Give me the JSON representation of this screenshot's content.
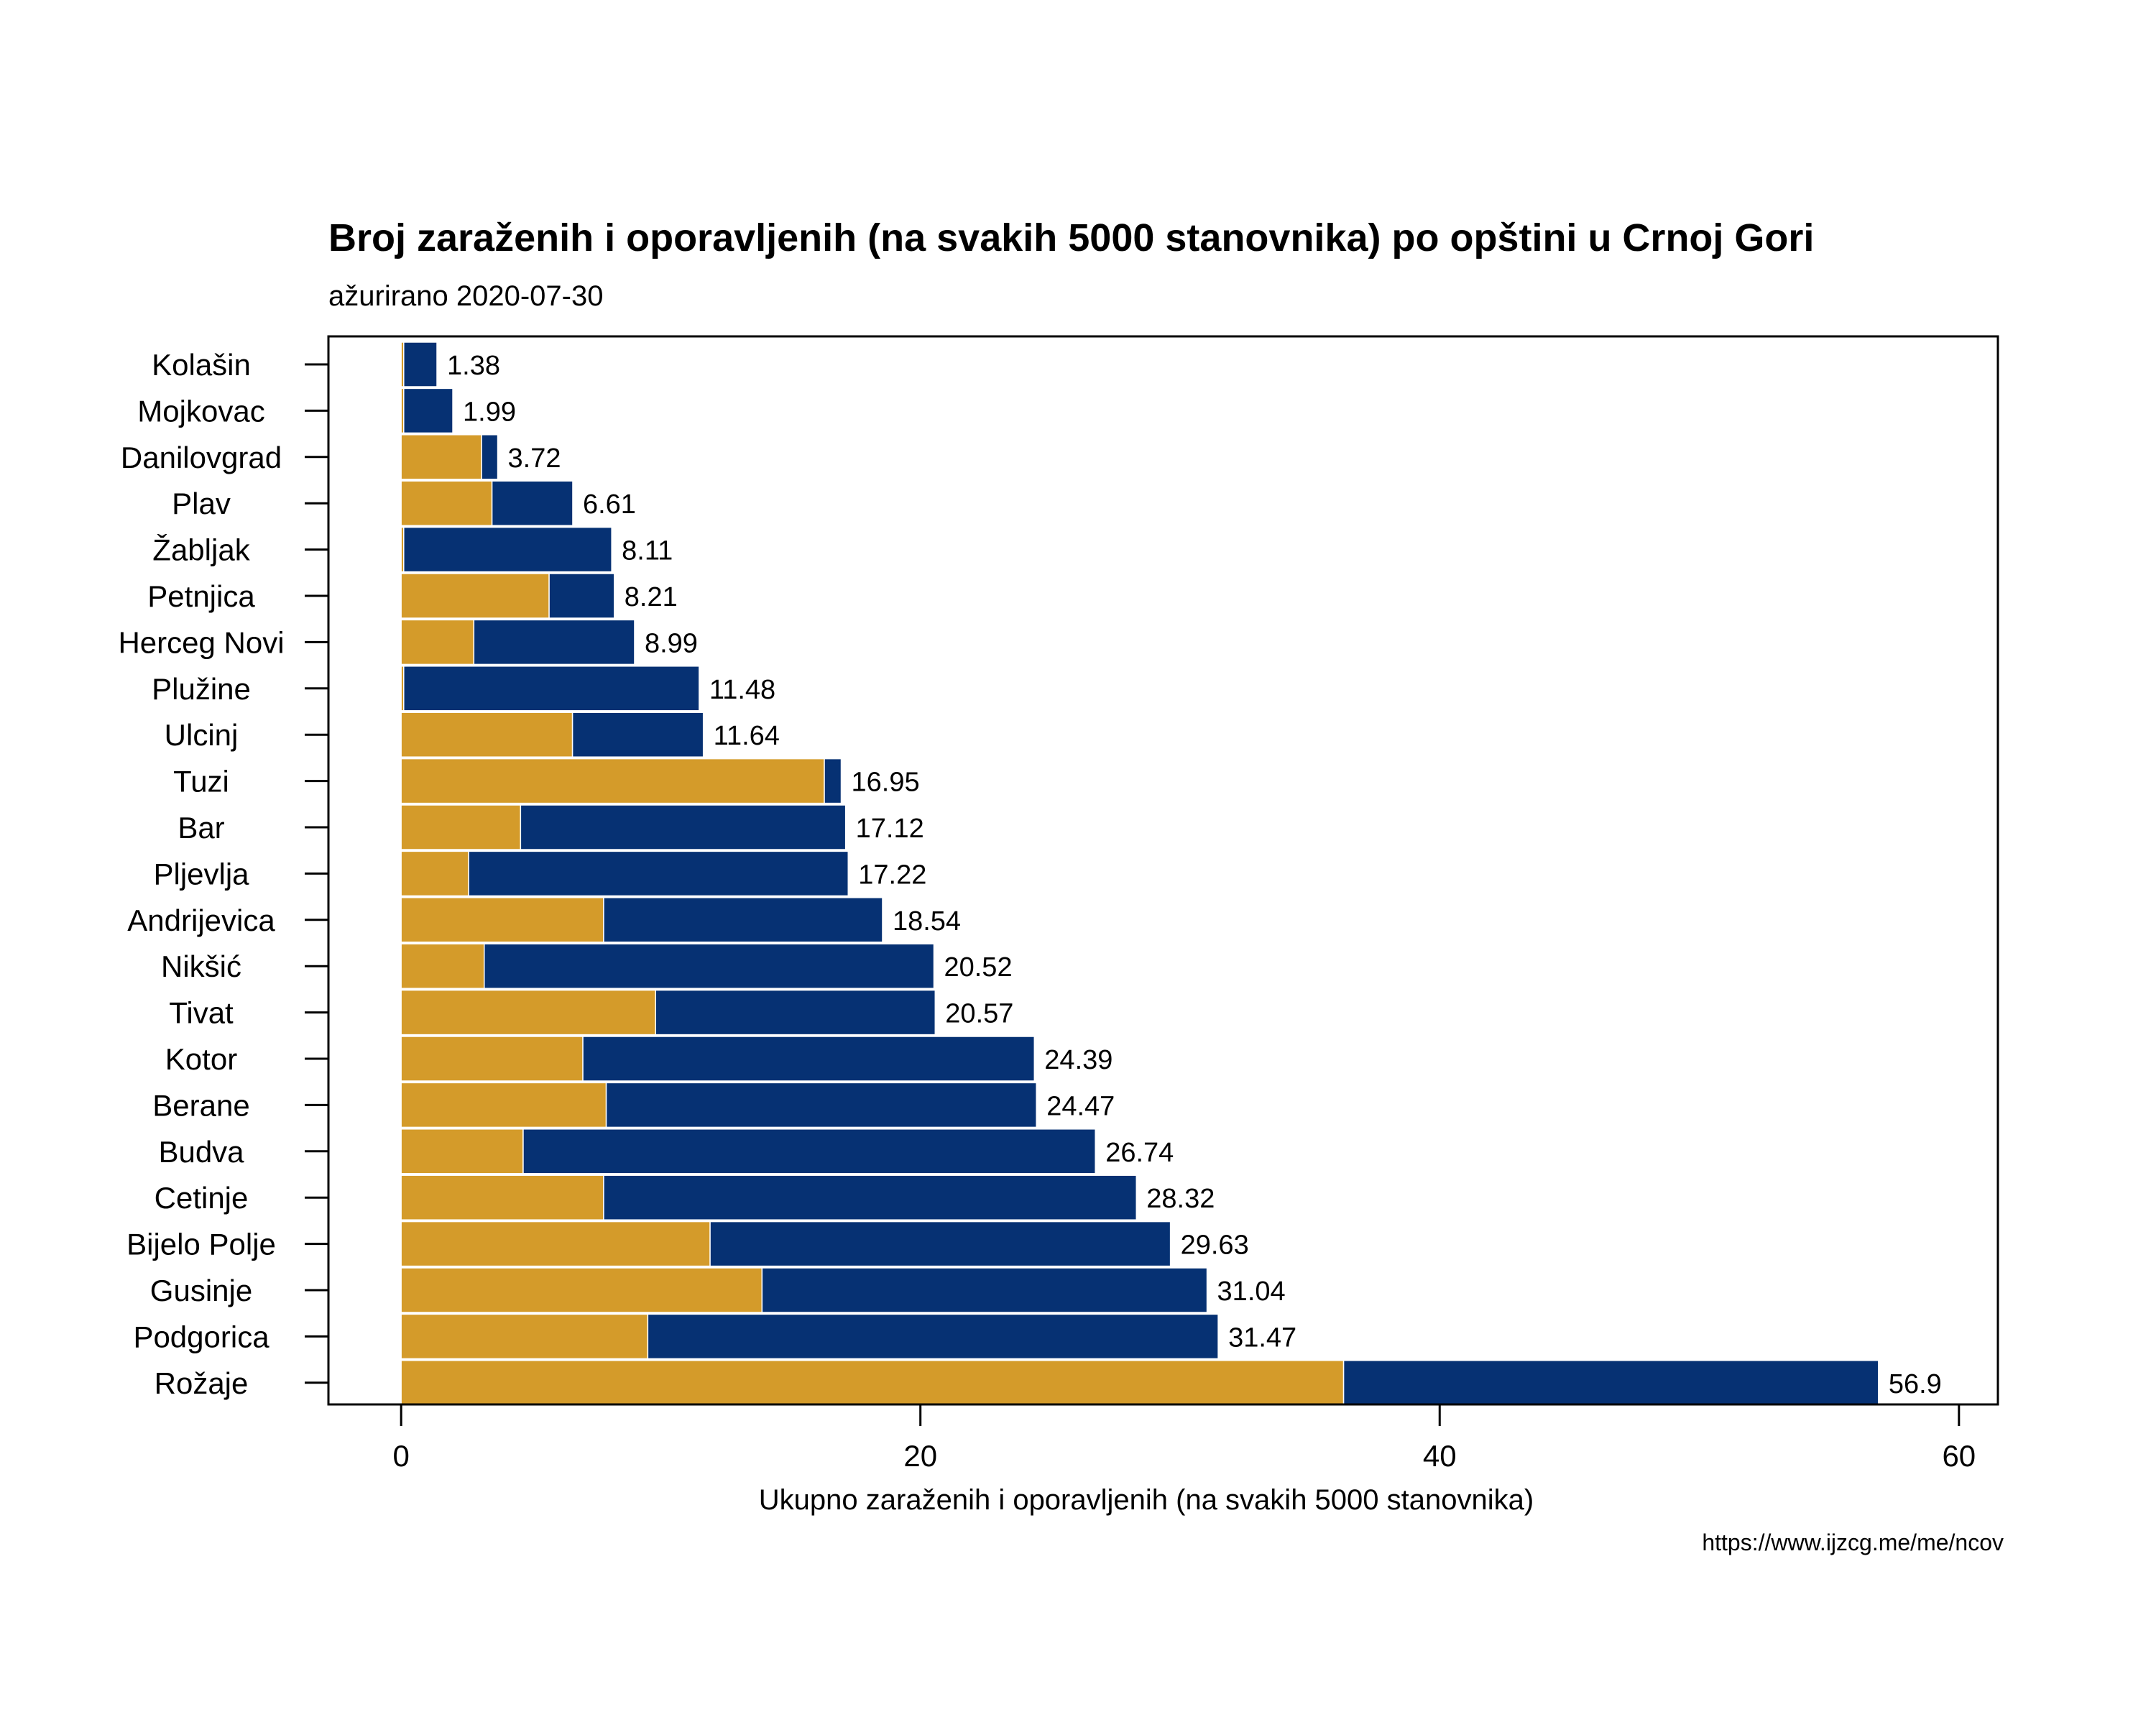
{
  "header": {
    "title": "Broj zaraženih i oporavljenih (na svakih 5000 stanovnika) po opštini u Crnoj Gori",
    "subtitle": "ažurirano 2020-07-30"
  },
  "footer": {
    "source": "https://www.ijzcg.me/me/ncov"
  },
  "colors": {
    "recovered": "#D49B2A",
    "infected": "#063173",
    "background": "#ffffff",
    "axis": "#000000"
  },
  "chart_data": {
    "type": "bar",
    "orientation": "horizontal",
    "stacked": true,
    "title": "Broj zaraženih i oporavljenih (na svakih 5000 stanovnika) po opštini u Crnoj Gori",
    "subtitle": "ažurirano 2020-07-30",
    "xlabel": "Ukupno zaraženih i oporavljenih (na svakih 5000 stanovnika)",
    "ylabel": "",
    "xlim": [
      -2.8,
      61.5
    ],
    "xticks": [
      0,
      20,
      40,
      60
    ],
    "grid": false,
    "legend": "none",
    "categories": [
      "Kolašin",
      "Mojkovac",
      "Danilovgrad",
      "Plav",
      "Žabljak",
      "Petnjica",
      "Herceg Novi",
      "Plužine",
      "Ulcinj",
      "Tuzi",
      "Bar",
      "Pljevlja",
      "Andrijevica",
      "Nikšić",
      "Tivat",
      "Kotor",
      "Berane",
      "Budva",
      "Cetinje",
      "Bijelo Polje",
      "Gusinje",
      "Podgorica",
      "Rožaje"
    ],
    "series": [
      {
        "color": "#D49B2A",
        "values": [
          0.1,
          0.1,
          3.1,
          3.5,
          0.1,
          5.7,
          2.8,
          0.1,
          6.6,
          16.3,
          4.6,
          2.6,
          7.8,
          3.2,
          9.8,
          7.0,
          7.9,
          4.7,
          7.8,
          11.9,
          13.9,
          9.5,
          36.3
        ]
      },
      {
        "color": "#063173",
        "values": [
          1.28,
          1.89,
          0.62,
          3.11,
          8.01,
          2.51,
          6.19,
          11.38,
          5.04,
          0.65,
          12.52,
          14.62,
          10.74,
          17.32,
          10.77,
          17.39,
          16.57,
          22.04,
          20.52,
          17.73,
          17.14,
          21.97,
          20.6
        ]
      }
    ],
    "totals": [
      "1.38",
      "1.99",
      "3.72",
      "6.61",
      "8.11",
      "8.21",
      "8.99",
      "11.48",
      "11.64",
      "16.95",
      "17.12",
      "17.22",
      "18.54",
      "20.52",
      "20.57",
      "24.39",
      "24.47",
      "26.74",
      "28.32",
      "29.63",
      "31.04",
      "31.47",
      "56.9"
    ]
  }
}
